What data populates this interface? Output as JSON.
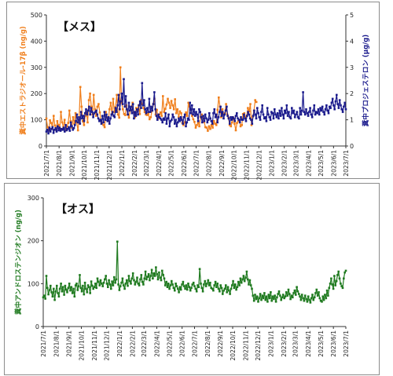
{
  "chart_data": [
    {
      "type": "line",
      "title": "【メス】",
      "x_ticks": [
        "2021/7/1",
        "2021/8/1",
        "2021/9/1",
        "2021/10/1",
        "2021/11/1",
        "2021/12/1",
        "2022/1/1",
        "2022/2/1",
        "2022/3/1",
        "2022/4/1",
        "2022/5/1",
        "2022/6/1",
        "2022/7/1",
        "2022/8/1",
        "2022/9/1",
        "2022/10/1",
        "2022/11/1",
        "2022/12/1",
        "2023/1/1",
        "2023/2/1",
        "2023/3/1",
        "2023/4/1",
        "2023/5/1",
        "2023/6/1",
        "2023/7/1"
      ],
      "ylabel_left": "糞中エストラジオール-17β (ng/g)",
      "ylabel_right": "糞中プロジェステロン (μg/g)",
      "ylim_left": [
        0,
        500
      ],
      "ylim_right": [
        0,
        5
      ],
      "yticks_left": [
        "0",
        "100",
        "200",
        "300",
        "400",
        "500"
      ],
      "yticks_right": [
        "0",
        "1",
        "2",
        "3",
        "4",
        "5"
      ],
      "grid": false,
      "legend": "none",
      "series": [
        {
          "color": "#f07f1c",
          "axis": "left",
          "x_range": [
            "2021/7/1",
            "2022/11/25"
          ],
          "values": [
            105,
            72,
            60,
            98,
            88,
            70,
            115,
            78,
            62,
            95,
            80,
            68,
            130,
            90,
            72,
            100,
            60,
            75,
            88,
            135,
            95,
            70,
            110,
            85,
            125,
            90,
            60,
            105,
            225,
            150,
            95,
            80,
            115,
            130,
            90,
            175,
            200,
            150,
            120,
            195,
            140,
            115,
            150,
            160,
            128,
            95,
            88,
            80,
            72,
            130,
            108,
            95,
            140,
            165,
            122,
            180,
            130,
            148,
            195,
            120,
            108,
            300,
            165,
            140,
            122,
            118,
            155,
            120,
            108,
            135,
            150,
            165,
            128,
            110,
            145,
            138,
            155,
            122,
            175,
            160,
            145,
            130,
            120,
            118,
            125,
            102,
            110,
            135,
            160,
            180,
            120,
            138,
            105,
            120,
            128,
            115,
            190,
            130,
            142,
            158,
            180,
            165,
            145,
            172,
            155,
            140,
            178,
            125,
            140,
            110,
            132,
            125,
            88,
            80,
            90,
            128,
            115,
            165,
            150,
            138,
            115,
            102,
            92,
            70,
            80,
            90,
            75,
            112,
            120,
            108,
            92,
            72,
            70,
            58,
            75,
            65,
            80,
            70,
            95,
            85,
            80,
            138,
            185,
            150,
            110,
            140,
            120,
            125,
            160,
            120,
            108,
            80,
            75,
            90,
            108,
            85,
            60,
            88,
            95,
            100,
            75,
            80,
            122,
            125,
            108,
            115,
            145,
            132,
            160,
            80,
            112,
            135,
            175,
            168
          ]
        },
        {
          "color": "#1a1a8c",
          "axis": "right",
          "x_range": [
            "2021/7/1",
            "2023/7/1"
          ],
          "values": [
            0.55,
            0.62,
            0.48,
            0.7,
            0.55,
            0.65,
            0.72,
            0.5,
            0.62,
            0.68,
            0.55,
            0.75,
            0.6,
            0.7,
            0.58,
            0.65,
            0.62,
            0.7,
            0.55,
            0.8,
            0.6,
            0.65,
            0.72,
            0.58,
            0.9,
            0.75,
            0.62,
            0.68,
            0.8,
            0.95,
            1.2,
            0.9,
            1.1,
            0.85,
            1.3,
            1.05,
            1.15,
            0.95,
            1.25,
            1.4,
            1.2,
            1.35,
            1.5,
            1.2,
            1.45,
            1.3,
            1.1,
            1.25,
            1.3,
            1.35,
            1.2,
            1.05,
            0.95,
            1.0,
            0.85,
            1.15,
            0.9,
            1.3,
            1.0,
            1.2,
            0.95,
            1.1,
            0.85,
            1.05,
            1.2,
            1.3,
            1.15,
            1.1,
            1.45,
            1.3,
            1.55,
            1.95,
            1.4,
            1.7,
            2.0,
            1.6,
            2.55,
            1.5,
            1.9,
            1.4,
            1.2,
            1.65,
            1.35,
            1.5,
            1.25,
            1.6,
            1.05,
            1.3,
            1.15,
            1.4,
            1.2,
            1.55,
            1.7,
            1.45,
            2.4,
            1.55,
            1.75,
            1.4,
            1.25,
            1.45,
            1.3,
            1.8,
            1.3,
            1.5,
            1.35,
            1.6,
            2.05,
            1.4,
            1.15,
            1.0,
            1.2,
            1.1,
            1.05,
            1.0,
            0.9,
            1.05,
            1.0,
            1.25,
            0.85,
            1.05,
            1.2,
            0.75,
            0.95,
            1.0,
            1.2,
            1.1,
            0.85,
            1.0,
            0.75,
            0.9,
            1.05,
            0.95,
            1.1,
            1.0,
            0.85,
            1.1,
            1.2,
            0.75,
            0.9,
            1.05,
            1.0,
            1.65,
            1.25,
            1.55,
            1.2,
            1.4,
            1.15,
            1.3,
            1.2,
            0.95,
            1.4,
            1.3,
            1.1,
            0.9,
            1.15,
            0.95,
            1.2,
            1.05,
            0.9,
            1.0,
            1.25,
            1.05,
            0.95,
            0.85,
            1.25,
            1.4,
            1.1,
            1.2,
            0.9,
            1.1,
            1.3,
            1.5,
            1.15,
            1.3,
            1.05,
            1.2,
            1.35,
            1.5,
            1.15,
            1.05,
            0.85,
            1.1,
            1.0,
            1.1,
            1.05,
            0.95,
            1.15,
            1.25,
            1.05,
            1.0,
            0.9,
            1.1,
            1.0,
            1.0,
            1.2,
            1.05,
            0.95,
            1.15,
            1.3,
            1.2,
            1.05,
            1.0,
            0.85,
            1.15,
            1.35,
            1.2,
            1.05,
            1.45,
            1.25,
            1.1,
            1.0,
            1.3,
            1.55,
            1.2,
            1.05,
            1.1,
            0.95,
            1.45,
            1.2,
            1.1,
            1.0,
            1.3,
            1.25,
            1.05,
            1.4,
            1.2,
            1.1,
            1.25,
            1.05,
            1.35,
            1.15,
            1.45,
            1.2,
            1.05,
            1.35,
            1.25,
            1.55,
            1.15,
            1.3,
            1.1,
            1.05,
            1.45,
            1.25,
            1.35,
            1.1,
            1.2,
            1.3,
            1.1,
            1.05,
            1.45,
            1.2,
            1.35,
            2.05,
            1.3,
            1.2,
            1.4,
            1.25,
            1.15,
            1.3,
            1.45,
            1.2,
            1.1,
            1.35,
            1.55,
            1.2,
            1.3,
            1.25,
            1.4,
            1.2,
            1.45,
            1.35,
            1.5,
            1.3,
            1.2,
            1.4,
            1.55,
            1.35,
            1.25,
            1.5,
            1.45,
            1.65,
            1.8,
            1.55,
            1.4,
            1.7,
            1.95,
            1.6,
            1.45,
            1.75,
            1.55,
            1.4,
            1.3,
            1.5,
            1.65,
            1.4
          ]
        }
      ]
    },
    {
      "type": "line",
      "title": "【オス】",
      "x_ticks": [
        "2021/7/1",
        "2021/8/1",
        "2021/9/1",
        "2021/10/1",
        "2021/11/1",
        "2021/12/1",
        "2022/1/1",
        "2022/2/1",
        "2022/3/1",
        "2022/4/1",
        "2022/5/1",
        "2022/6/1",
        "2022/7/1",
        "2022/8/1",
        "2022/9/1",
        "2022/10/1",
        "2022/11/1",
        "2022/12/1",
        "2023/1/1",
        "2023/2/1",
        "2023/3/1",
        "2023/4/1",
        "2023/5/1",
        "2023/6/1",
        "2023/7/1"
      ],
      "ylabel": "糞中アンドロステンジオン (ng/g)",
      "ylim": [
        0,
        300
      ],
      "yticks": [
        "0",
        "100",
        "200",
        "300"
      ],
      "grid": false,
      "legend": "none",
      "series": [
        {
          "color": "#1f7a1f",
          "x_range": [
            "2021/7/1",
            "2023/7/1"
          ],
          "values": [
            68,
            72,
            65,
            118,
            90,
            75,
            85,
            95,
            80,
            70,
            88,
            62,
            82,
            95,
            78,
            70,
            88,
            100,
            82,
            92,
            74,
            95,
            86,
            80,
            90,
            100,
            84,
            92,
            78,
            88,
            70,
            96,
            100,
            85,
            94,
            120,
            90,
            82,
            95,
            75,
            102,
            88,
            80,
            96,
            92,
            78,
            105,
            95,
            88,
            92,
            100,
            90,
            112,
            104,
            96,
            108,
            100,
            94,
            102,
            110,
            118,
            100,
            92,
            108,
            98,
            88,
            105,
            96,
            115,
            102,
            110,
            198,
            98,
            85,
            94,
            102,
            112,
            96,
            88,
            100,
            108,
            95,
            118,
            106,
            100,
            112,
            124,
            108,
            98,
            104,
            114,
            100,
            96,
            110,
            120,
            104,
            98,
            112,
            128,
            110,
            116,
            122,
            108,
            118,
            132,
            112,
            124,
            118,
            138,
            122,
            110,
            126,
            114,
            108,
            130,
            120,
            112,
            96,
            104,
            92,
            100,
            88,
            96,
            106,
            98,
            90,
            84,
            100,
            94,
            88,
            80,
            92,
            86,
            98,
            104,
            94,
            88,
            96,
            86,
            100,
            92,
            84,
            90,
            98,
            102,
            94,
            88,
            82,
            96,
            92,
            134,
            100,
            90,
            82,
            98,
            106,
            94,
            100,
            108,
            96,
            102,
            90,
            88,
            84,
            96,
            104,
            92,
            100,
            88,
            82,
            96,
            90,
            76,
            84,
            88,
            96,
            80,
            92,
            84,
            76,
            88,
            96,
            106,
            90,
            98,
            86,
            92,
            104,
            96,
            112,
            102,
            110,
            118,
            106,
            114,
            128,
            110,
            98,
            108,
            96,
            88,
            72,
            60,
            74,
            64,
            70,
            58,
            66,
            76,
            62,
            72,
            66,
            78,
            62,
            70,
            58,
            74,
            66,
            80,
            60,
            70,
            64,
            72,
            58,
            68,
            76,
            82,
            72,
            62,
            68,
            74,
            66,
            70,
            80,
            72,
            86,
            76,
            64,
            72,
            68,
            78,
            84,
            74,
            92,
            82,
            76,
            70,
            62,
            74,
            66,
            60,
            72,
            64,
            58,
            70,
            62,
            56,
            66,
            74,
            62,
            68,
            78,
            86,
            72,
            80,
            66,
            60,
            58,
            70,
            62,
            74,
            66,
            84,
            72,
            90,
            100,
            112,
            98,
            88,
            118,
            96,
            106,
            120,
            128,
            112,
            100,
            94,
            90,
            112,
            126,
            130
          ]
        }
      ]
    }
  ]
}
